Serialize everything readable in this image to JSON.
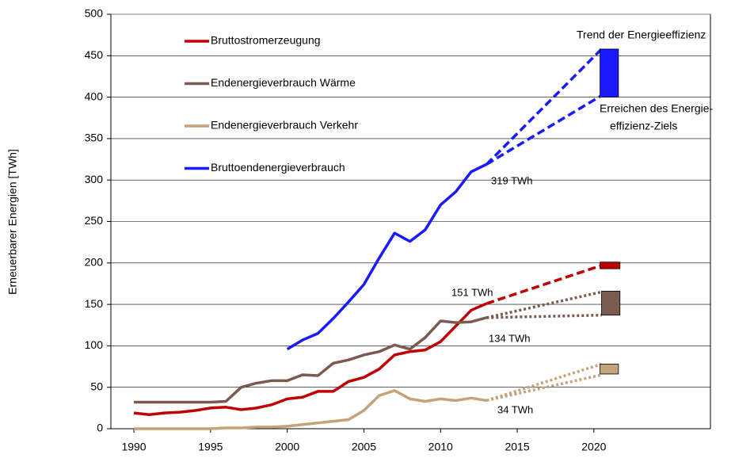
{
  "chart_data": {
    "type": "line",
    "y_label": "Erneuerbarer Energien [TWh]",
    "xlim": [
      1988.5,
      2027.6
    ],
    "ylim": [
      0,
      500
    ],
    "xticks": [
      1990,
      1995,
      2000,
      2005,
      2010,
      2015,
      2020
    ],
    "yticks": [
      0,
      50,
      100,
      150,
      200,
      250,
      300,
      350,
      400,
      450,
      500
    ],
    "grid": true,
    "series": [
      {
        "name": "Bruttostromerzeugung",
        "color": "#c00000",
        "x": [
          1990,
          1991,
          1992,
          1993,
          1994,
          1995,
          1996,
          1997,
          1998,
          1999,
          2000,
          2001,
          2002,
          2003,
          2004,
          2005,
          2006,
          2007,
          2008,
          2009,
          2010,
          2011,
          2012,
          2013
        ],
        "values": [
          19,
          17,
          19,
          20,
          22,
          25,
          26,
          23,
          25,
          29,
          36,
          38,
          45,
          45,
          57,
          62,
          72,
          89,
          93,
          95,
          105,
          124,
          143,
          151
        ]
      },
      {
        "name": "Endenergieverbrauch Wärme",
        "color": "#7b5a50",
        "x": [
          1990,
          1991,
          1992,
          1993,
          1994,
          1995,
          1996,
          1997,
          1998,
          1999,
          2000,
          2001,
          2002,
          2003,
          2004,
          2005,
          2006,
          2007,
          2008,
          2009,
          2010,
          2011,
          2012,
          2013
        ],
        "values": [
          32,
          32,
          32,
          32,
          32,
          32,
          33,
          50,
          55,
          58,
          58,
          65,
          64,
          79,
          83,
          89,
          93,
          101,
          96,
          110,
          130,
          128,
          129,
          134
        ]
      },
      {
        "name": "Endenergieverbrauch Verkehr",
        "color": "#c4a27a",
        "x": [
          1990,
          1991,
          1992,
          1993,
          1994,
          1995,
          1996,
          1997,
          1998,
          1999,
          2000,
          2001,
          2002,
          2003,
          2004,
          2005,
          2006,
          2007,
          2008,
          2009,
          2010,
          2011,
          2012,
          2013
        ],
        "values": [
          0,
          0,
          0,
          0,
          0,
          0,
          1,
          1,
          2,
          2,
          3,
          5,
          7,
          9,
          11,
          22,
          40,
          46,
          36,
          33,
          36,
          34,
          37,
          34
        ]
      },
      {
        "name": "Bruttoendenergieverbrauch",
        "color": "#1a1aff",
        "x": [
          2000,
          2001,
          2002,
          2003,
          2004,
          2005,
          2006,
          2007,
          2008,
          2009,
          2010,
          2011,
          2012,
          2013
        ],
        "values": [
          96,
          107,
          115,
          133,
          153,
          174,
          206,
          236,
          226,
          240,
          270,
          286,
          310,
          319
        ]
      }
    ],
    "projections": [
      {
        "color": "#1a1aff",
        "dash": "10,5",
        "x": [
          2013,
          2020.5
        ],
        "values": [
          319,
          458
        ]
      },
      {
        "color": "#1a1aff",
        "dash": "10,5",
        "x": [
          2013,
          2020.5
        ],
        "values": [
          319,
          402
        ]
      },
      {
        "color": "#c00000",
        "dash": "10,5",
        "x": [
          2013,
          2020.5
        ],
        "values": [
          151,
          197
        ]
      },
      {
        "color": "#7b5a50",
        "dash": "3,3",
        "x": [
          2013,
          2020.5
        ],
        "values": [
          134,
          165
        ]
      },
      {
        "color": "#7b5a50",
        "dash": "3,3",
        "x": [
          2013,
          2020.5
        ],
        "values": [
          134,
          137
        ]
      },
      {
        "color": "#c4a27a",
        "dash": "3,3",
        "x": [
          2013,
          2020.5
        ],
        "values": [
          34,
          78
        ]
      },
      {
        "color": "#c4a27a",
        "dash": "3,3",
        "x": [
          2013,
          2020.5
        ],
        "values": [
          34,
          65
        ]
      }
    ],
    "ranges": [
      {
        "color": "#1a1aff",
        "x": [
          2020.4,
          2021.6
        ],
        "values": [
          400,
          458
        ]
      },
      {
        "color": "#c00000",
        "x": [
          2020.4,
          2021.7
        ],
        "values": [
          193,
          201
        ]
      },
      {
        "color": "#7b5a50",
        "x": [
          2020.5,
          2021.7
        ],
        "values": [
          137,
          166
        ]
      },
      {
        "color": "#c4a27a",
        "x": [
          2020.4,
          2021.6
        ],
        "values": [
          66,
          78
        ]
      }
    ],
    "annotations": [
      {
        "text": "319 TWh",
        "color": "#1a1aff"
      },
      {
        "text": "151 TWh",
        "color": "#c00000"
      },
      {
        "text": "134 TWh",
        "color": "#7b5a50"
      },
      {
        "text": "34 TWh",
        "color": "#c4a27a"
      },
      {
        "text": "Trend der Energieeffizienz",
        "color": "#000000"
      },
      {
        "text": "Erreichen des Energie-",
        "color": "#000000"
      },
      {
        "text": "effizienz-Ziels",
        "color": "#000000"
      }
    ]
  }
}
